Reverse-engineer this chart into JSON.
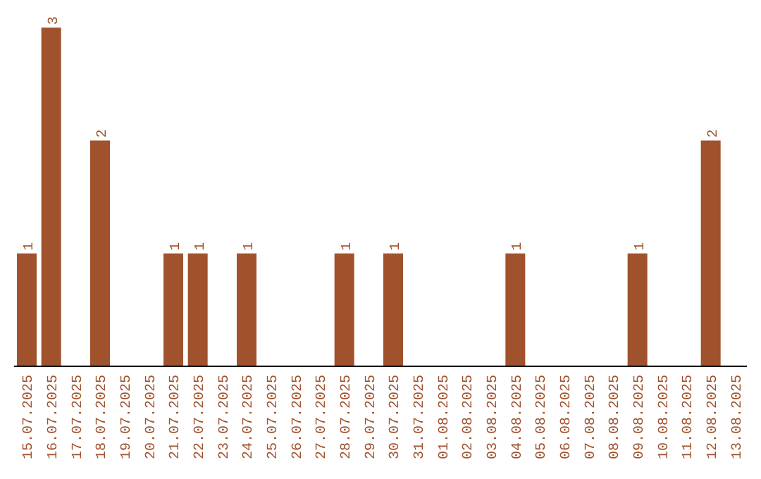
{
  "chart_data": {
    "type": "bar",
    "categories": [
      "15.07.2025",
      "16.07.2025",
      "17.07.2025",
      "18.07.2025",
      "19.07.2025",
      "20.07.2025",
      "21.07.2025",
      "22.07.2025",
      "23.07.2025",
      "24.07.2025",
      "25.07.2025",
      "26.07.2025",
      "27.07.2025",
      "28.07.2025",
      "29.07.2025",
      "30.07.2025",
      "31.07.2025",
      "01.08.2025",
      "02.08.2025",
      "03.08.2025",
      "04.08.2025",
      "05.08.2025",
      "06.08.2025",
      "07.08.2025",
      "08.08.2025",
      "09.08.2025",
      "10.08.2025",
      "11.08.2025",
      "12.08.2025",
      "13.08.2025"
    ],
    "values": [
      1,
      3,
      0,
      2,
      0,
      0,
      1,
      1,
      0,
      1,
      0,
      0,
      0,
      1,
      0,
      1,
      0,
      0,
      0,
      0,
      1,
      0,
      0,
      0,
      0,
      1,
      0,
      0,
      2,
      0
    ],
    "value_labels": [
      "1",
      "3",
      null,
      "2",
      null,
      null,
      "1",
      "1",
      null,
      "1",
      null,
      null,
      null,
      "1",
      null,
      "1",
      null,
      null,
      null,
      null,
      "1",
      null,
      null,
      null,
      null,
      "1",
      null,
      null,
      "2",
      null
    ],
    "color": "#a0522d",
    "tick_labels": "x"
  }
}
